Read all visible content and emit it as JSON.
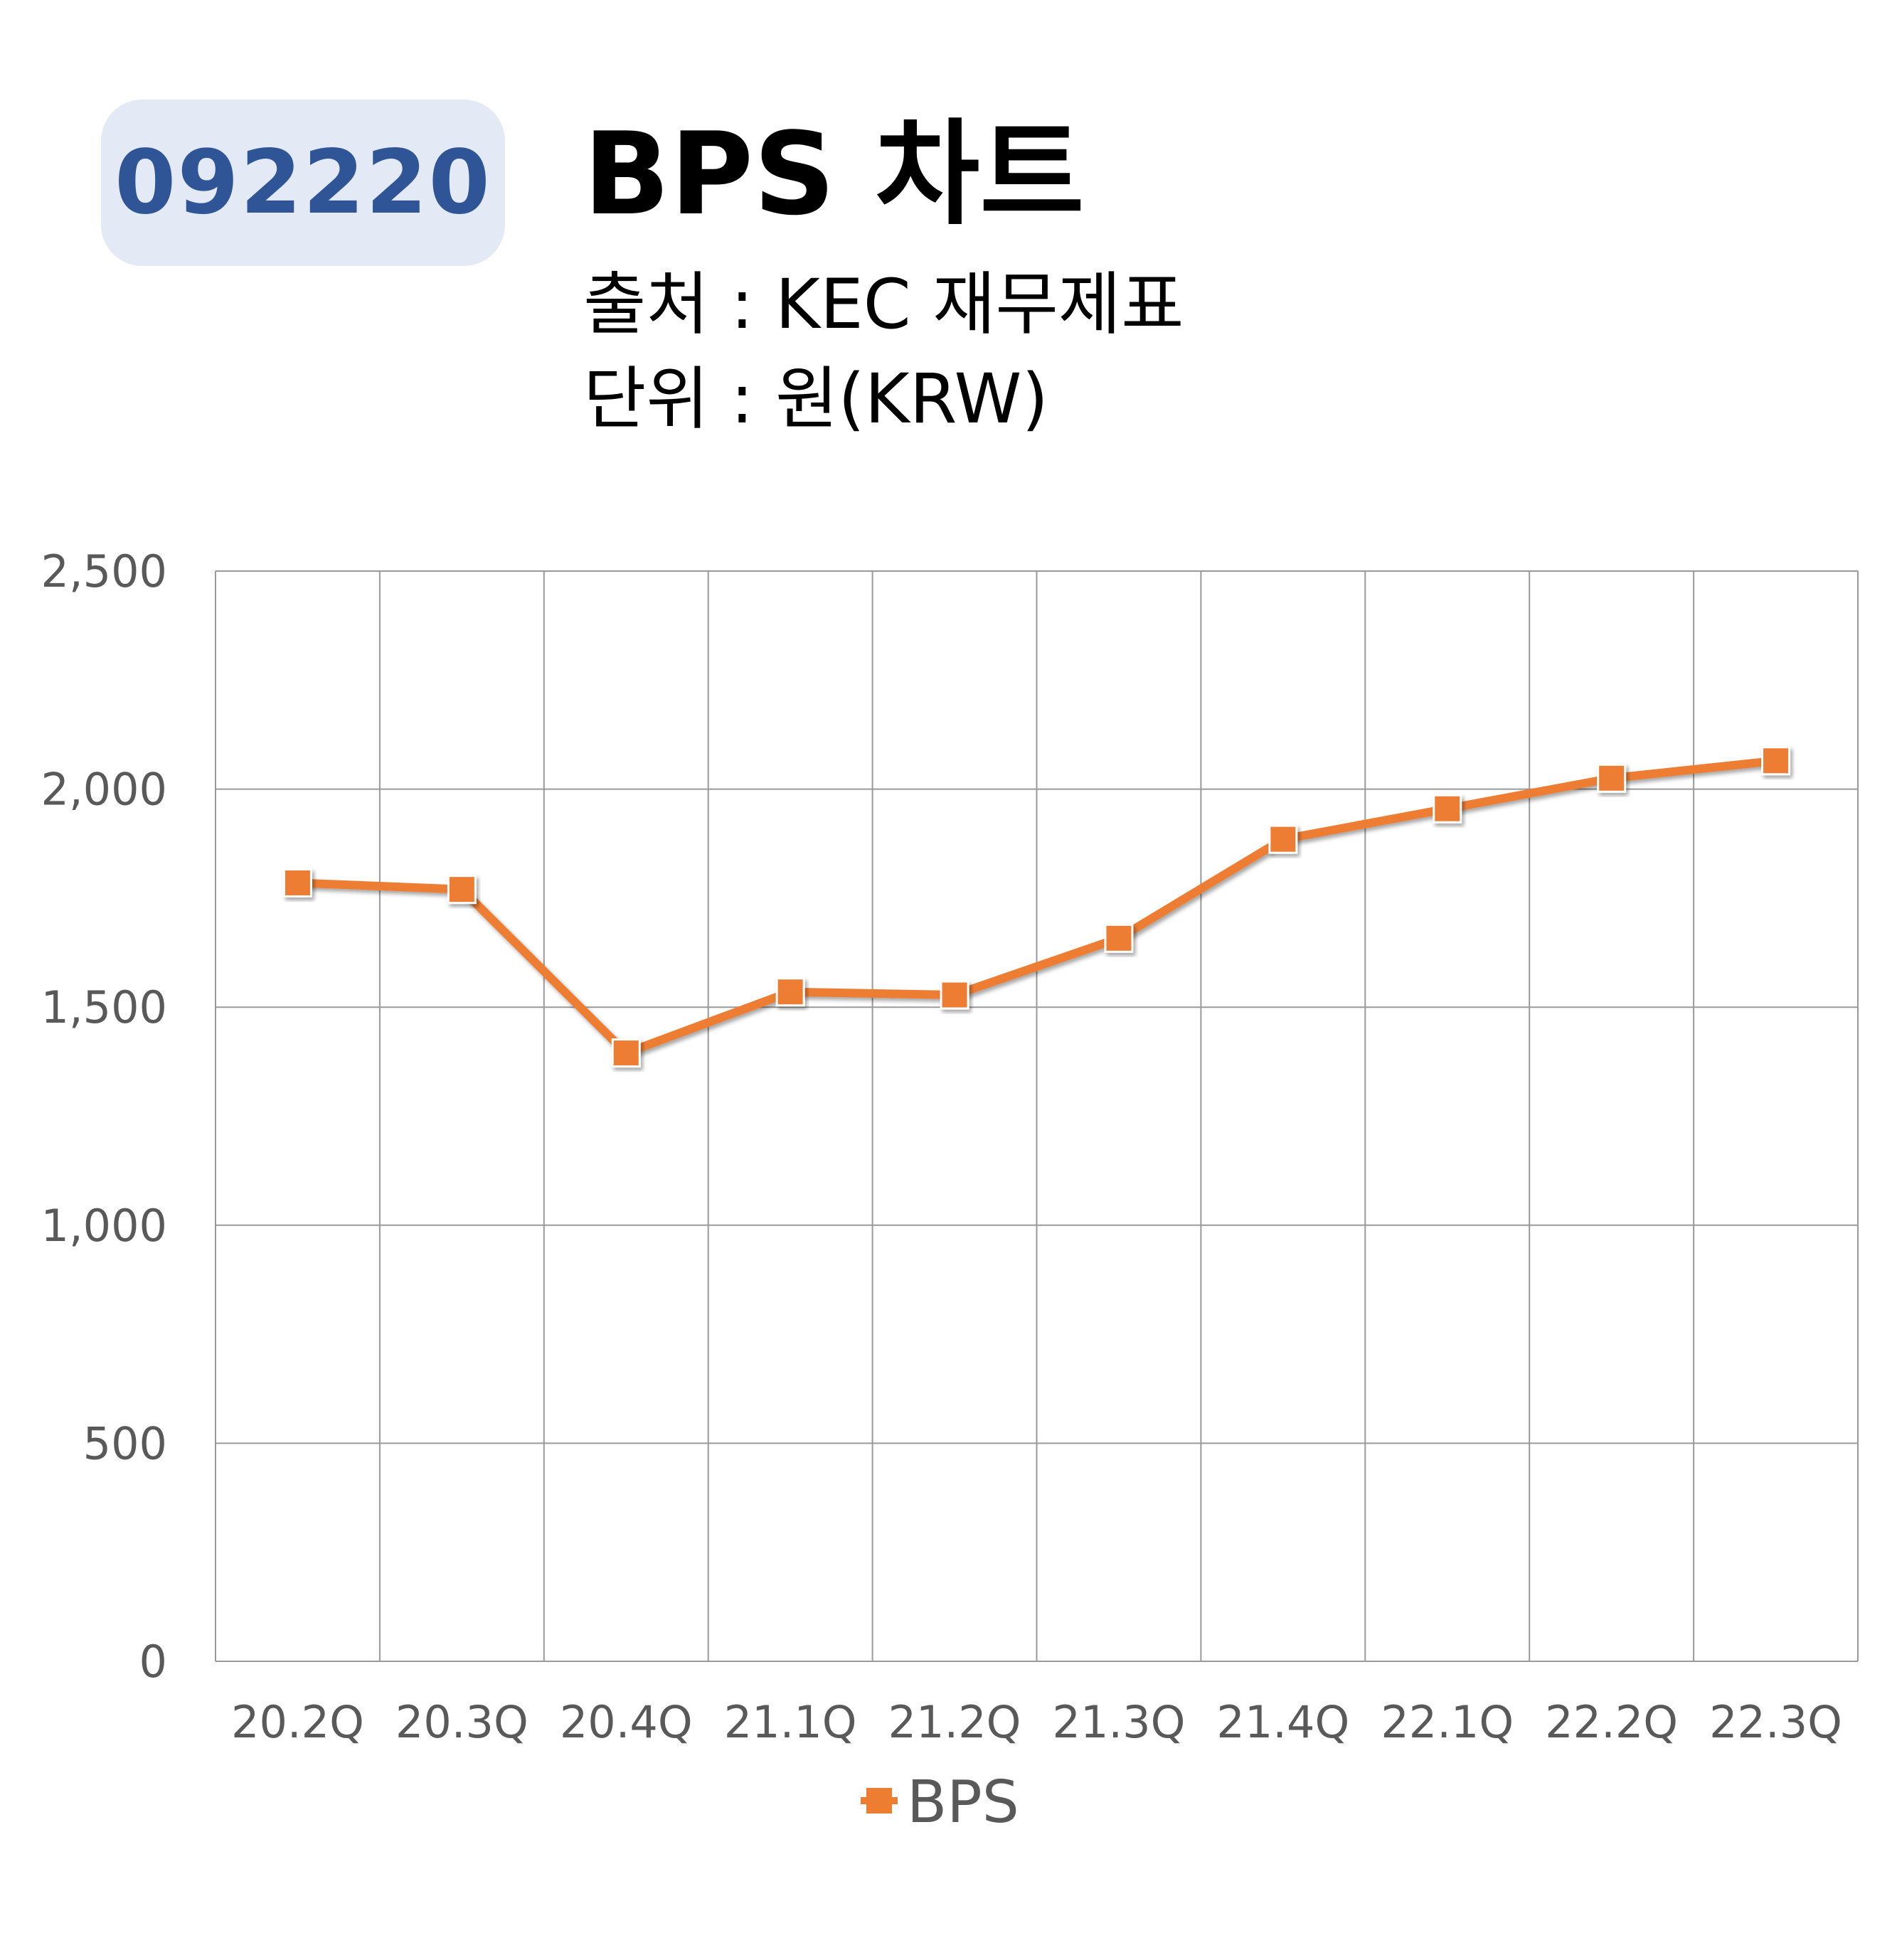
{
  "header": {
    "code": "092220",
    "title": "BPS 차트",
    "source": "출처 : KEC 재무제표",
    "unit": "단위 : 원(KRW)"
  },
  "colors": {
    "series": "#ed7d31",
    "badge_bg": "#e3e9f5",
    "badge_text": "#2f5597",
    "grid": "#9a9a9a"
  },
  "chart_data": {
    "type": "line",
    "categories": [
      "20.2Q",
      "20.3Q",
      "20.4Q",
      "21.1Q",
      "21.2Q",
      "21.3Q",
      "21.4Q",
      "22.1Q",
      "22.2Q",
      "22.3Q"
    ],
    "series": [
      {
        "name": "BPS",
        "values": [
          1785,
          1770,
          1395,
          1535,
          1528,
          1658,
          1885,
          1955,
          2025,
          2065
        ],
        "marker": "square"
      }
    ],
    "ylim": [
      0,
      2500
    ],
    "yticks": [
      0,
      500,
      1000,
      1500,
      2000,
      2500
    ],
    "ytick_labels": [
      "0",
      "500",
      "1,000",
      "1,500",
      "2,000",
      "2,500"
    ],
    "grid": true,
    "legend_position": "bottom"
  }
}
